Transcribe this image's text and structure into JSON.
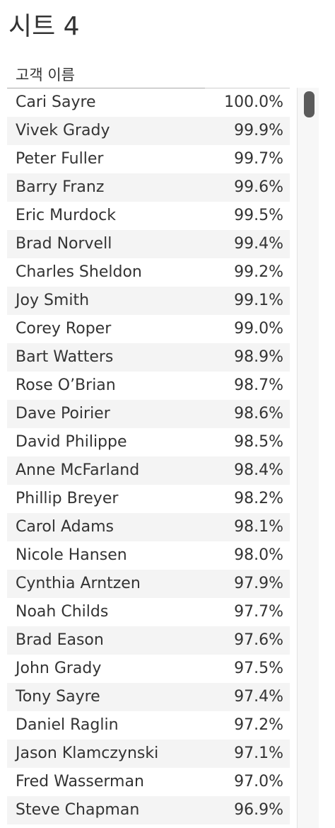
{
  "sheet": {
    "title": "시트 4"
  },
  "table": {
    "column_header": "고객 이름",
    "rows": [
      {
        "name": "Cari Sayre",
        "value": "100.0%"
      },
      {
        "name": "Vivek Grady",
        "value": "99.9%"
      },
      {
        "name": "Peter Fuller",
        "value": "99.7%"
      },
      {
        "name": "Barry Franz",
        "value": "99.6%"
      },
      {
        "name": "Eric Murdock",
        "value": "99.5%"
      },
      {
        "name": "Brad Norvell",
        "value": "99.4%"
      },
      {
        "name": "Charles Sheldon",
        "value": "99.2%"
      },
      {
        "name": "Joy Smith",
        "value": "99.1%"
      },
      {
        "name": "Corey Roper",
        "value": "99.0%"
      },
      {
        "name": "Bart Watters",
        "value": "98.9%"
      },
      {
        "name": "Rose O’Brian",
        "value": "98.7%"
      },
      {
        "name": "Dave Poirier",
        "value": "98.6%"
      },
      {
        "name": "David Philippe",
        "value": "98.5%"
      },
      {
        "name": "Anne McFarland",
        "value": "98.4%"
      },
      {
        "name": "Phillip Breyer",
        "value": "98.2%"
      },
      {
        "name": "Carol Adams",
        "value": "98.1%"
      },
      {
        "name": "Nicole Hansen",
        "value": "98.0%"
      },
      {
        "name": "Cynthia Arntzen",
        "value": "97.9%"
      },
      {
        "name": "Noah Childs",
        "value": "97.7%"
      },
      {
        "name": "Brad Eason",
        "value": "97.6%"
      },
      {
        "name": "John Grady",
        "value": "97.5%"
      },
      {
        "name": "Tony Sayre",
        "value": "97.4%"
      },
      {
        "name": "Daniel Raglin",
        "value": "97.2%"
      },
      {
        "name": "Jason Klamczynski",
        "value": "97.1%"
      },
      {
        "name": "Fred Wasserman",
        "value": "97.0%"
      },
      {
        "name": "Steve Chapman",
        "value": "96.9%"
      }
    ]
  },
  "colors": {
    "text": "#333333",
    "band": "#f4f4f4",
    "scroll_thumb": "#5b5b5b"
  }
}
